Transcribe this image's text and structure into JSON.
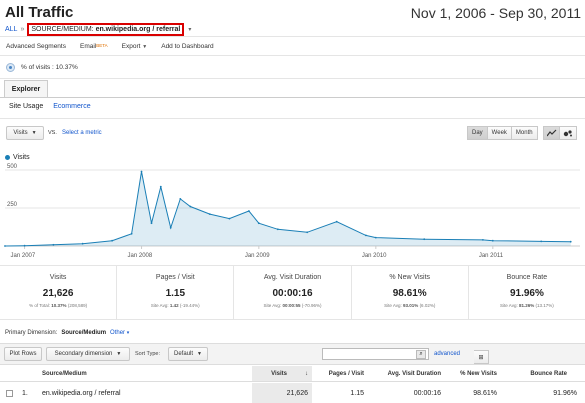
{
  "header": {
    "title": "All Traffic",
    "date_range": "Nov 1, 2006 - Sep 30, 2011",
    "breadcrumb_all": "ALL",
    "breadcrumb_sep": "»",
    "breadcrumb_key": "SOURCE/MEDIUM:",
    "breadcrumb_value": "en.wikipedia.org / referral"
  },
  "toolbar": {
    "advanced_segments": "Advanced Segments",
    "email": "Email",
    "email_beta": "BETA",
    "export": "Export",
    "add_to_dashboard": "Add to Dashboard"
  },
  "segment": {
    "label": "% of visits : 10.37%"
  },
  "tabs": {
    "explorer": "Explorer",
    "site_usage": "Site Usage",
    "ecommerce": "Ecommerce"
  },
  "controls": {
    "metric": "Visits",
    "vs": "VS.",
    "select_metric": "Select a metric",
    "day": "Day",
    "week": "Week",
    "month": "Month"
  },
  "chart_data": {
    "type": "line",
    "series": [
      {
        "name": "Visits",
        "color": "#1a7fb6"
      }
    ],
    "ylabel_ticks": [
      "500",
      "250"
    ],
    "ylim": [
      0,
      500
    ],
    "x_ticks": [
      "Jan 2007",
      "Jan 2008",
      "Jan 2009",
      "Jan 2010",
      "Jan 2011"
    ],
    "x": [
      "2006-11",
      "2007-01",
      "2007-04",
      "2007-07",
      "2007-10",
      "2007-12",
      "2008-01",
      "2008-02",
      "2008-03",
      "2008-04",
      "2008-05",
      "2008-06",
      "2008-08",
      "2008-10",
      "2008-12",
      "2009-01",
      "2009-03",
      "2009-06",
      "2009-09",
      "2009-12",
      "2010-01",
      "2010-06",
      "2010-12",
      "2011-01",
      "2011-06",
      "2011-09"
    ],
    "values": [
      0,
      2,
      8,
      15,
      35,
      80,
      490,
      150,
      390,
      120,
      310,
      260,
      210,
      180,
      230,
      150,
      110,
      90,
      160,
      70,
      55,
      45,
      40,
      35,
      30,
      28
    ]
  },
  "stats": [
    {
      "label": "Visits",
      "value": "21,626",
      "sub_label": "% of Total:",
      "sub_value": "10.37%",
      "sub_extra": "(208,589)"
    },
    {
      "label": "Pages / Visit",
      "value": "1.15",
      "sub_label": "Site Avg:",
      "sub_value": "1.42",
      "sub_extra": "(-19.44%)"
    },
    {
      "label": "Avg. Visit Duration",
      "value": "00:00:16",
      "sub_label": "Site Avg:",
      "sub_value": "00:00:55",
      "sub_extra": "(-70.96%)"
    },
    {
      "label": "% New Visits",
      "value": "98.61%",
      "sub_label": "Site Avg:",
      "sub_value": "93.01%",
      "sub_extra": "(6.02%)"
    },
    {
      "label": "Bounce Rate",
      "value": "91.96%",
      "sub_label": "Site Avg:",
      "sub_value": "81.26%",
      "sub_extra": "(13.17%)"
    }
  ],
  "primary_dimension": {
    "label": "Primary Dimension:",
    "current": "Source/Medium",
    "other": "Other"
  },
  "table_toolbar": {
    "plot_rows": "Plot Rows",
    "secondary_dimension": "Secondary dimension",
    "sort_type_label": "Sort Type:",
    "sort_type": "Default",
    "advanced": "advanced"
  },
  "table": {
    "headers": [
      "Source/Medium",
      "Visits",
      "Pages / Visit",
      "Avg. Visit Duration",
      "% New Visits",
      "Bounce Rate"
    ],
    "sort_arrow": "↓",
    "rows": [
      {
        "index": "1.",
        "source": "en.wikipedia.org / referral",
        "visits": "21,626",
        "pages": "1.15",
        "duration": "00:00:16",
        "new": "98.61%",
        "bounce": "91.96%"
      }
    ]
  }
}
